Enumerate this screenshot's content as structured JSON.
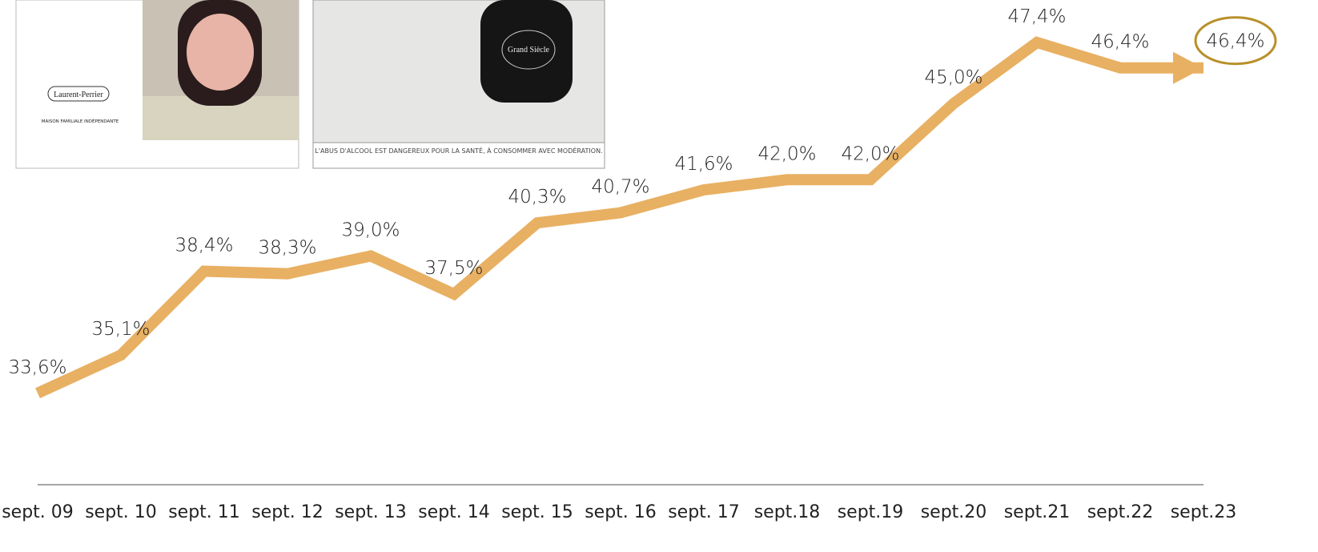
{
  "chart_data": {
    "type": "line",
    "categories": [
      "sept. 09",
      "sept. 10",
      "sept. 11",
      "sept. 12",
      "sept. 13",
      "sept. 14",
      "sept. 15",
      "sept. 16",
      "sept. 17",
      "sept.18",
      "sept.19",
      "sept.20",
      "sept.21",
      "sept.22",
      "sept.23"
    ],
    "values": [
      33.6,
      35.1,
      38.4,
      38.3,
      39.0,
      37.5,
      40.3,
      40.7,
      41.6,
      42.0,
      42.0,
      45.0,
      47.4,
      46.4,
      46.4
    ],
    "value_labels": [
      "33,6%",
      "35,1%",
      "38,4%",
      "38,3%",
      "39,0%",
      "37,5%",
      "40,3%",
      "40,7%",
      "41,6%",
      "42,0%",
      "42,0%",
      "45,0%",
      "47,4%",
      "46,4%",
      "46,4%"
    ],
    "color": "#e8b062",
    "highlight_color": "#b8902a",
    "ylim": [
      30,
      49.07
    ],
    "annotations": [
      "Laurent-Perrier",
      "MAISON FAMILIALE INDÉPENDANTE",
      "Grand Siècle",
      "L'ABUS D'ALCOOL EST DANGEREUX POUR LA SANTÉ, À CONSOMMER AVEC MODÉRATION."
    ]
  }
}
